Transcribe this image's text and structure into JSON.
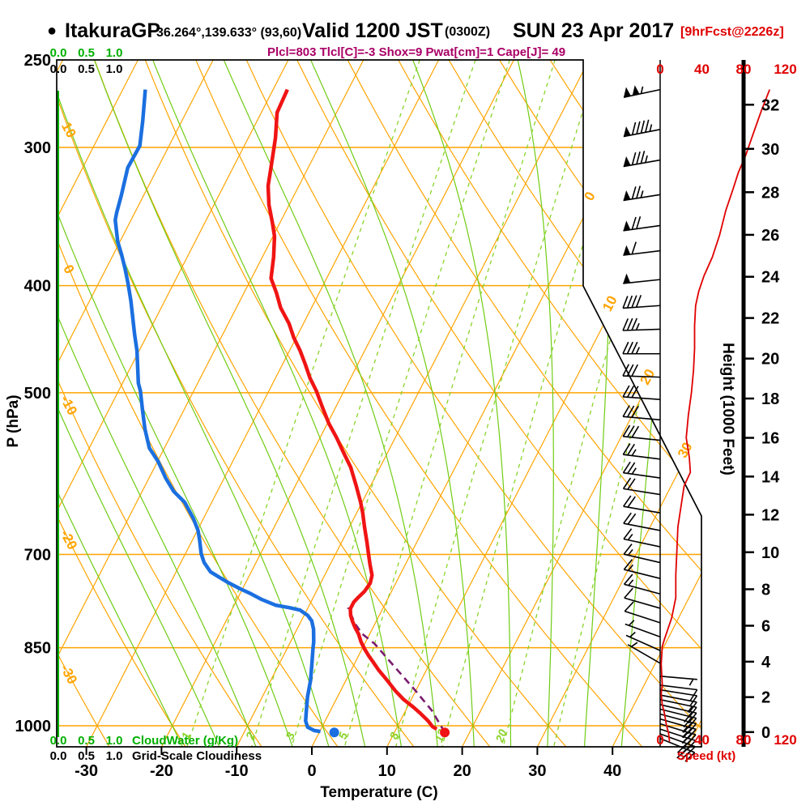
{
  "header": {
    "bullet": "●",
    "station": "ItakuraGP",
    "coords": "36.264°,139.633° (93,60)",
    "valid": "Valid 1200 JST",
    "valid_z": "(0300Z)",
    "valid_date": "SUN 23 Apr 2017",
    "fcst_tag": "[9hrFcst@2226z]",
    "indices": "Plcl=803 Tlcl[C]=-3 Shox=9 Pwat[cm]=1 Cape[J]= 49"
  },
  "axes": {
    "pressure_label": "P (hPa)",
    "pressure_ticks": [
      250,
      300,
      400,
      500,
      700,
      850,
      1000
    ],
    "temp_label": "Temperature (C)",
    "temp_ticks": [
      -30,
      -20,
      -10,
      0,
      10,
      20,
      30,
      40
    ],
    "height_label": "Height (1000 Feet)",
    "height_ticks": [
      0,
      2,
      4,
      6,
      8,
      10,
      12,
      14,
      16,
      18,
      20,
      22,
      24,
      26,
      28,
      30,
      32
    ],
    "speed_label": "Speed (kt)",
    "speed_ticks": [
      0,
      40,
      80,
      120
    ],
    "cloud_scale_values": [
      "0.0",
      "0.5",
      "1.0"
    ],
    "cloudwater_label": "CloudWater (g/Kg)",
    "cloudiness_label": "Grid-Scale Cloudiness"
  },
  "colors": {
    "grid_orange": "#ffa400",
    "moist_green": "#70cc14",
    "mixing_green": "#8ad428",
    "axis_green": "#00b000",
    "temp_red": "#f01414",
    "dew_blue": "#1b6fe0",
    "parcel_purple": "#7a1c6e",
    "speed_red": "#e00000",
    "indices_magenta": "#aa0066",
    "black": "#000000"
  },
  "chart_data": {
    "type": "skewt_logp",
    "title": "ItakuraGP sounding valid 1200 JST SUN 23 Apr 2017",
    "pressure_range_hpa": [
      250,
      1044
    ],
    "isobars_hpa": [
      300,
      400,
      500,
      700,
      850,
      1000
    ],
    "isotherms_c": {
      "start": -80,
      "end": 50,
      "step": 10,
      "right_edge_labels": [
        0,
        10,
        20,
        30
      ]
    },
    "dry_adiabats_c": {
      "start": -30,
      "end": 120,
      "step": 10,
      "left_edge_labels": [
        10,
        0,
        -10,
        -20,
        -30
      ]
    },
    "moist_adiabats_c": {
      "start": -20,
      "end": 40,
      "step": 5
    },
    "mixing_ratio_g_kg": [
      1,
      2,
      3,
      5,
      8,
      12,
      20,
      30
    ],
    "mixing_ratio_labels": [
      1,
      2,
      3,
      5,
      8,
      12,
      20
    ],
    "temperature_c": [
      [
        266,
        -48.1
      ],
      [
        279,
        -47.9
      ],
      [
        294,
        -46.4
      ],
      [
        311,
        -45.1
      ],
      [
        325,
        -44.1
      ],
      [
        338,
        -42.7
      ],
      [
        351,
        -41.0
      ],
      [
        361,
        -39.8
      ],
      [
        377,
        -38.5
      ],
      [
        394,
        -37.4
      ],
      [
        406,
        -35.7
      ],
      [
        419,
        -34.1
      ],
      [
        433,
        -31.9
      ],
      [
        446,
        -30.3
      ],
      [
        458,
        -28.6
      ],
      [
        471,
        -27.0
      ],
      [
        485,
        -25.4
      ],
      [
        498,
        -23.7
      ],
      [
        515,
        -21.8
      ],
      [
        533,
        -19.8
      ],
      [
        549,
        -17.8
      ],
      [
        565,
        -16.0
      ],
      [
        584,
        -13.9
      ],
      [
        607,
        -11.9
      ],
      [
        628,
        -10.2
      ],
      [
        642,
        -9.2
      ],
      [
        661,
        -8.0
      ],
      [
        683,
        -6.6
      ],
      [
        698,
        -5.7
      ],
      [
        715,
        -4.7
      ],
      [
        731,
        -3.7
      ],
      [
        743,
        -3.4
      ],
      [
        756,
        -3.6
      ],
      [
        765,
        -4.0
      ],
      [
        773,
        -4.3
      ],
      [
        784,
        -4.3
      ],
      [
        795,
        -3.8
      ],
      [
        804,
        -3.2
      ],
      [
        815,
        -2.4
      ],
      [
        826,
        -1.5
      ],
      [
        840,
        -0.6
      ],
      [
        853,
        0.4
      ],
      [
        865,
        1.4
      ],
      [
        875,
        2.3
      ],
      [
        890,
        3.6
      ],
      [
        910,
        5.5
      ],
      [
        930,
        7.3
      ],
      [
        946,
        8.9
      ],
      [
        962,
        10.8
      ],
      [
        973,
        12.0
      ],
      [
        990,
        13.7
      ],
      [
        1002,
        14.7
      ],
      [
        1007,
        15.4
      ]
    ],
    "dewpoint_c": [
      [
        266,
        -67.0
      ],
      [
        284,
        -65.2
      ],
      [
        299,
        -63.9
      ],
      [
        313,
        -64.0
      ],
      [
        331,
        -63.0
      ],
      [
        344,
        -62.4
      ],
      [
        349,
        -62.1
      ],
      [
        365,
        -60.3
      ],
      [
        375,
        -58.9
      ],
      [
        386,
        -57.5
      ],
      [
        398,
        -56.1
      ],
      [
        413,
        -54.5
      ],
      [
        443,
        -51.7
      ],
      [
        458,
        -50.3
      ],
      [
        490,
        -47.9
      ],
      [
        498,
        -47.1
      ],
      [
        521,
        -45.3
      ],
      [
        539,
        -43.9
      ],
      [
        561,
        -42.0
      ],
      [
        577,
        -39.9
      ],
      [
        597,
        -37.8
      ],
      [
        614,
        -35.8
      ],
      [
        628,
        -33.6
      ],
      [
        649,
        -31.4
      ],
      [
        666,
        -29.9
      ],
      [
        680,
        -29.0
      ],
      [
        699,
        -27.9
      ],
      [
        712,
        -26.9
      ],
      [
        726,
        -25.4
      ],
      [
        734,
        -23.9
      ],
      [
        743,
        -22.2
      ],
      [
        752,
        -20.3
      ],
      [
        760,
        -18.5
      ],
      [
        769,
        -16.7
      ],
      [
        778,
        -14.5
      ],
      [
        782,
        -12.5
      ],
      [
        786,
        -10.9
      ],
      [
        795,
        -9.5
      ],
      [
        804,
        -8.6
      ],
      [
        818,
        -7.8
      ],
      [
        840,
        -6.9
      ],
      [
        850,
        -6.6
      ],
      [
        884,
        -5.5
      ],
      [
        910,
        -4.7
      ],
      [
        941,
        -4.0
      ],
      [
        969,
        -3.2
      ],
      [
        990,
        -2.6
      ],
      [
        1003,
        -1.9
      ],
      [
        1010,
        -0.8
      ],
      [
        1012,
        0.1
      ]
    ],
    "parcel_c": [
      [
        1014,
        16.7
      ],
      [
        969,
        13.5
      ],
      [
        929,
        9.9
      ],
      [
        884,
        5.5
      ],
      [
        843,
        1.3
      ],
      [
        826,
        -1.0
      ],
      [
        808,
        -2.7
      ],
      [
        792,
        -3.9
      ],
      [
        782,
        -4.7
      ]
    ],
    "surface_temp_point": [
      1014,
      16.7
    ],
    "surface_dew_point": [
      1014,
      2.0
    ],
    "speed_profile_kt": [
      [
        266,
        105
      ],
      [
        278,
        97
      ],
      [
        292,
        89
      ],
      [
        305,
        82
      ],
      [
        316,
        75
      ],
      [
        327,
        70
      ],
      [
        342,
        63
      ],
      [
        360,
        57
      ],
      [
        377,
        50
      ],
      [
        392,
        42
      ],
      [
        405,
        37
      ],
      [
        417,
        34
      ],
      [
        435,
        33
      ],
      [
        456,
        33
      ],
      [
        477,
        32
      ],
      [
        500,
        30
      ],
      [
        524,
        27
      ],
      [
        549,
        25
      ],
      [
        572,
        28
      ],
      [
        590,
        29
      ],
      [
        607,
        23
      ],
      [
        661,
        17
      ],
      [
        696,
        16
      ],
      [
        731,
        15
      ],
      [
        766,
        15
      ],
      [
        799,
        11
      ],
      [
        836,
        4
      ],
      [
        848,
        2
      ],
      [
        880,
        1
      ],
      [
        918,
        2
      ],
      [
        936,
        1
      ],
      [
        957,
        2
      ],
      [
        973,
        4
      ],
      [
        998,
        6
      ],
      [
        1015,
        8
      ],
      [
        1033,
        9
      ]
    ],
    "wind_barbs": [
      [
        266,
        105,
        258
      ],
      [
        289,
        95,
        259
      ],
      [
        308,
        85,
        260
      ],
      [
        331,
        75,
        261
      ],
      [
        353,
        68,
        262
      ],
      [
        372,
        60,
        263
      ],
      [
        395,
        50,
        264
      ],
      [
        417,
        40,
        266
      ],
      [
        438,
        35,
        268
      ],
      [
        461,
        33,
        270
      ],
      [
        484,
        32,
        272
      ],
      [
        507,
        30,
        274
      ],
      [
        529,
        28,
        275
      ],
      [
        552,
        28,
        276
      ],
      [
        574,
        26,
        277
      ],
      [
        597,
        24,
        278
      ],
      [
        618,
        22,
        279
      ],
      [
        642,
        20,
        280
      ],
      [
        666,
        18,
        281
      ],
      [
        689,
        17,
        282
      ],
      [
        712,
        16,
        283
      ],
      [
        736,
        15,
        284
      ],
      [
        760,
        14,
        285
      ],
      [
        783,
        12,
        286
      ],
      [
        807,
        10,
        288
      ],
      [
        831,
        7,
        290
      ],
      [
        855,
        5,
        294
      ],
      [
        878,
        3,
        300
      ],
      [
        902,
        5,
        95
      ],
      [
        919,
        8,
        97
      ],
      [
        928,
        10,
        99
      ],
      [
        938,
        12,
        101
      ],
      [
        947,
        15,
        102
      ],
      [
        957,
        18,
        103
      ],
      [
        966,
        20,
        104
      ],
      [
        976,
        22,
        105
      ],
      [
        986,
        24,
        106
      ],
      [
        996,
        25,
        107
      ],
      [
        1007,
        26,
        108
      ],
      [
        1017,
        28,
        110
      ],
      [
        1027,
        28,
        112
      ]
    ],
    "cloudwater_profile_g_kg": 0.0,
    "grid_scale_cloudiness": 0.0
  }
}
